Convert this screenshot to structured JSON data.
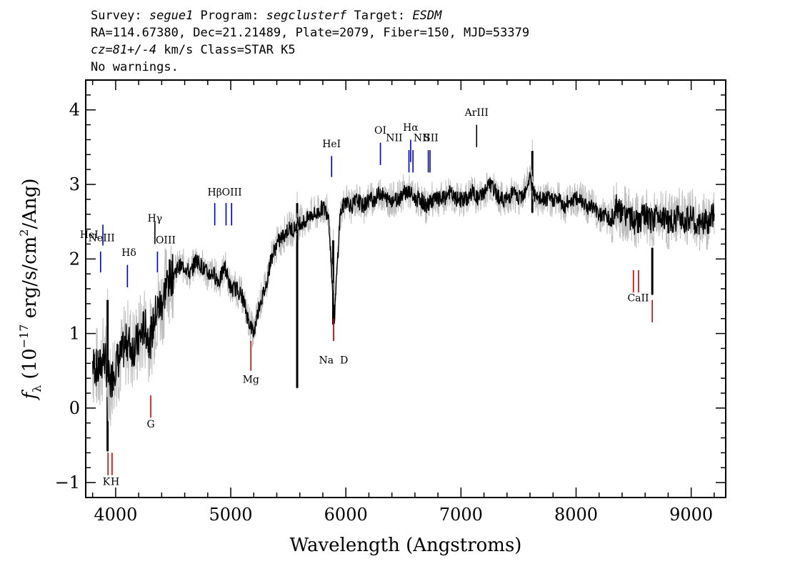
{
  "header": {
    "line1": {
      "survey_label": "Survey: ",
      "survey": "segue1",
      "program_label": " Program: ",
      "program": "segclusterf",
      "target_label": " Target: ",
      "target": "ESDM"
    },
    "line2": "RA=114.67380, Dec=21.21489, Plate=2079, Fiber=150, MJD=53379",
    "line3": {
      "cz": "cz=81+/-4",
      "rest": " km/s Class=STAR K5"
    },
    "line4": "No warnings."
  },
  "chart_data": {
    "type": "line",
    "xlabel": "Wavelength (Angstroms)",
    "ylabel_prefix": "f",
    "ylabel_sub": "λ",
    "ylabel_open": " (10",
    "ylabel_exp1": "−17",
    "ylabel_mid": " erg/s/cm",
    "ylabel_exp2": "2",
    "ylabel_close": "/Ang)",
    "xlim": [
      3740,
      9300
    ],
    "ylim": [
      -1.2,
      4.4
    ],
    "x_ticks": [
      4000,
      5000,
      6000,
      7000,
      8000,
      9000
    ],
    "x_tick_labels": [
      "4000",
      "5000",
      "6000",
      "7000",
      "8000",
      "9000"
    ],
    "y_ticks": [
      -1,
      0,
      1,
      2,
      3,
      4
    ],
    "y_tick_labels": [
      "−1",
      "0",
      "1",
      "2",
      "3",
      "4"
    ],
    "grid": false,
    "series": [
      {
        "color": "#000000",
        "x": [
          3800,
          3850,
          3900,
          3950,
          4000,
          4050,
          4100,
          4150,
          4200,
          4250,
          4300,
          4350,
          4400,
          4450,
          4500,
          4550,
          4600,
          4650,
          4700,
          4750,
          4800,
          4850,
          4900,
          4950,
          5000,
          5050,
          5100,
          5150,
          5200,
          5250,
          5300,
          5350,
          5400,
          5450,
          5500,
          5550,
          5600,
          5650,
          5700,
          5750,
          5800,
          5850,
          5900,
          5950,
          6000,
          6050,
          6100,
          6150,
          6200,
          6250,
          6300,
          6350,
          6400,
          6450,
          6500,
          6550,
          6600,
          6650,
          6700,
          6750,
          6800,
          6850,
          6900,
          6950,
          7000,
          7050,
          7100,
          7150,
          7200,
          7250,
          7300,
          7350,
          7400,
          7450,
          7500,
          7550,
          7600,
          7650,
          7700,
          7750,
          7800,
          7850,
          7900,
          7950,
          8000,
          8050,
          8100,
          8150,
          8200,
          8250,
          8300,
          8350,
          8400,
          8450,
          8500,
          8550,
          8600,
          8650,
          8700,
          8750,
          8800,
          8850,
          8900,
          8950,
          9000,
          9050,
          9100,
          9150,
          9200
        ],
        "y": [
          0.6,
          0.5,
          0.7,
          0.3,
          0.6,
          0.7,
          0.9,
          0.8,
          0.9,
          1.1,
          0.9,
          1.3,
          1.4,
          1.7,
          1.8,
          1.9,
          1.9,
          1.8,
          2.0,
          1.9,
          1.8,
          1.8,
          1.7,
          1.9,
          1.6,
          1.6,
          1.5,
          1.2,
          1.0,
          1.4,
          1.6,
          2.0,
          2.2,
          2.3,
          2.4,
          2.4,
          2.5,
          2.5,
          2.6,
          2.6,
          2.7,
          2.6,
          1.2,
          2.6,
          2.8,
          2.7,
          2.8,
          2.7,
          2.8,
          2.8,
          2.9,
          2.8,
          2.8,
          2.8,
          2.9,
          2.9,
          2.8,
          2.8,
          2.7,
          2.8,
          2.8,
          2.8,
          2.9,
          2.8,
          2.8,
          2.8,
          2.9,
          2.8,
          2.9,
          3.0,
          2.9,
          2.8,
          2.8,
          2.9,
          2.8,
          2.9,
          3.1,
          2.8,
          2.8,
          2.8,
          2.8,
          2.8,
          2.7,
          2.8,
          2.8,
          2.8,
          2.7,
          2.7,
          2.6,
          2.6,
          2.5,
          2.7,
          2.6,
          2.6,
          2.5,
          2.5,
          2.6,
          2.5,
          2.6,
          2.6,
          2.5,
          2.5,
          2.6,
          2.5,
          2.6,
          2.4,
          2.5,
          2.5,
          2.6
        ]
      }
    ],
    "spikes": [
      {
        "x": 5577,
        "y_top": 2.9,
        "y_bottom": 0.25
      },
      {
        "x": 5890,
        "y_top": 2.4,
        "y_bottom": 1.1
      },
      {
        "x": 7620,
        "y_top": 3.6,
        "y_bottom": 2.6
      },
      {
        "x": 8662,
        "y_top": 2.3,
        "y_bottom": 1.5
      },
      {
        "x": 3930,
        "y_top": 1.6,
        "y_bottom": -0.6
      }
    ],
    "emission_lines": [
      {
        "label": "HeI",
        "x": 3889,
        "y1": 2.18,
        "y2": 2.46,
        "color": "#0000cc",
        "lx": 3770,
        "ly": 2.28
      },
      {
        "label": "NeIII",
        "x": 3869,
        "y1": 1.82,
        "y2": 2.1,
        "color": "#0000cc",
        "lx": 3878,
        "ly": 2.24
      },
      {
        "label": "Hδ",
        "x": 4102,
        "y1": 1.62,
        "y2": 1.92,
        "color": "#0000cc",
        "lx": 4115,
        "ly": 2.04
      },
      {
        "label": "Hγ",
        "x": 4341,
        "y1": 2.2,
        "y2": 2.5,
        "color": "#000000",
        "lx": 4341,
        "ly": 2.5
      },
      {
        "label": "OIII",
        "x": 4363,
        "y1": 1.82,
        "y2": 2.1,
        "color": "#0000cc",
        "lx": 4435,
        "ly": 2.21
      },
      {
        "label": "Hβ",
        "x": 4861,
        "y1": 2.45,
        "y2": 2.75,
        "color": "#0000cc",
        "lx": 4861,
        "ly": 2.85
      },
      {
        "label": "OIII",
        "x": 4959,
        "y1": 2.45,
        "y2": 2.75,
        "color": "#0000cc",
        "lx": 5010,
        "ly": 2.85
      },
      {
        "label": "OIII",
        "x": 5007,
        "y1": 2.45,
        "y2": 2.75,
        "color": "#0000cc",
        "lx": 5010,
        "ly": 2.85
      },
      {
        "label": "HeI",
        "x": 5876,
        "y1": 3.1,
        "y2": 3.38,
        "color": "#0000cc",
        "lx": 5876,
        "ly": 3.5
      },
      {
        "label": "OI",
        "x": 6300,
        "y1": 3.26,
        "y2": 3.56,
        "color": "#0000cc",
        "lx": 6300,
        "ly": 3.68
      },
      {
        "label": "NII",
        "x": 6548,
        "y1": 3.16,
        "y2": 3.46,
        "color": "#0000cc",
        "lx": 6420,
        "ly": 3.58
      },
      {
        "label": "Hα",
        "x": 6563,
        "y1": 3.3,
        "y2": 3.6,
        "color": "#0000cc",
        "lx": 6563,
        "ly": 3.72
      },
      {
        "label": "NII",
        "x": 6583,
        "y1": 3.16,
        "y2": 3.46,
        "color": "#0000cc",
        "lx": 6660,
        "ly": 3.58
      },
      {
        "label": "SII",
        "x": 6716,
        "y1": 3.16,
        "y2": 3.46,
        "color": "#0000cc",
        "lx": 6740,
        "ly": 3.58
      },
      {
        "label": "SII",
        "x": 6731,
        "y1": 3.16,
        "y2": 3.46,
        "color": "#0000cc",
        "lx": 6740,
        "ly": 3.58
      },
      {
        "label": "ArIII",
        "x": 7136,
        "y1": 3.5,
        "y2": 3.8,
        "color": "#000000",
        "lx": 7136,
        "ly": 3.92
      }
    ],
    "absorption_lines": [
      {
        "label": "K",
        "x": 3934,
        "y1": -0.6,
        "y2": -0.9,
        "color": "#cc0000",
        "lx": 3920,
        "ly": -1.03
      },
      {
        "label": "H",
        "x": 3969,
        "y1": -0.6,
        "y2": -0.9,
        "color": "#cc0000",
        "lx": 3995,
        "ly": -1.03
      },
      {
        "label": "G",
        "x": 4305,
        "y1": 0.17,
        "y2": -0.13,
        "color": "#cc0000",
        "lx": 4305,
        "ly": -0.26
      },
      {
        "label": "Mg",
        "x": 5175,
        "y1": 0.9,
        "y2": 0.5,
        "color": "#cc0000",
        "lx": 5175,
        "ly": 0.34
      },
      {
        "label": "Na",
        "x": 5894,
        "y1": 1.2,
        "y2": 0.9,
        "color": "#cc0000",
        "lx": 5830,
        "ly": 0.6
      },
      {
        "label": "D",
        "x": 5894,
        "y1": 1.2,
        "y2": 0.9,
        "color": "#cc0000",
        "lx": 5985,
        "ly": 0.6
      },
      {
        "label": "CaII",
        "x": 8498,
        "y1": 1.85,
        "y2": 1.55,
        "color": "#cc0000",
        "lx": 8540,
        "ly": 1.43
      },
      {
        "label": "CaII",
        "x": 8542,
        "y1": 1.85,
        "y2": 1.55,
        "color": "#cc0000",
        "lx": 8540,
        "ly": 1.43
      },
      {
        "label": "CaII",
        "x": 8662,
        "y1": 1.45,
        "y2": 1.15,
        "color": "#cc0000",
        "lx": 8540,
        "ly": 1.43
      }
    ]
  }
}
